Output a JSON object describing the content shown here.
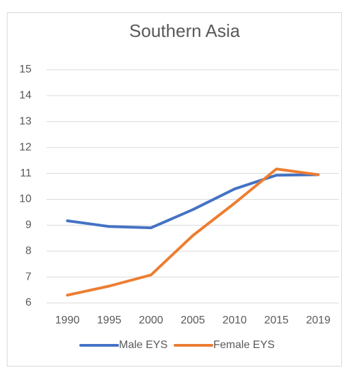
{
  "chart_data": {
    "type": "line",
    "title": "Southern Asia",
    "categories": [
      "1990",
      "1995",
      "2000",
      "2005",
      "2010",
      "2015",
      "2019"
    ],
    "series": [
      {
        "name": "Male EYS",
        "color": "#4472c4",
        "values": [
          9.17,
          8.95,
          8.9,
          9.6,
          10.4,
          10.93,
          10.95
        ]
      },
      {
        "name": "Female EYS",
        "color": "#ed7d31",
        "values": [
          6.3,
          6.65,
          7.08,
          8.6,
          9.85,
          11.17,
          10.95
        ]
      }
    ],
    "ylim": [
      6,
      15
    ],
    "yticks": [
      6,
      7,
      8,
      9,
      10,
      11,
      12,
      13,
      14,
      15
    ],
    "grid": true,
    "legend": "bottom"
  }
}
